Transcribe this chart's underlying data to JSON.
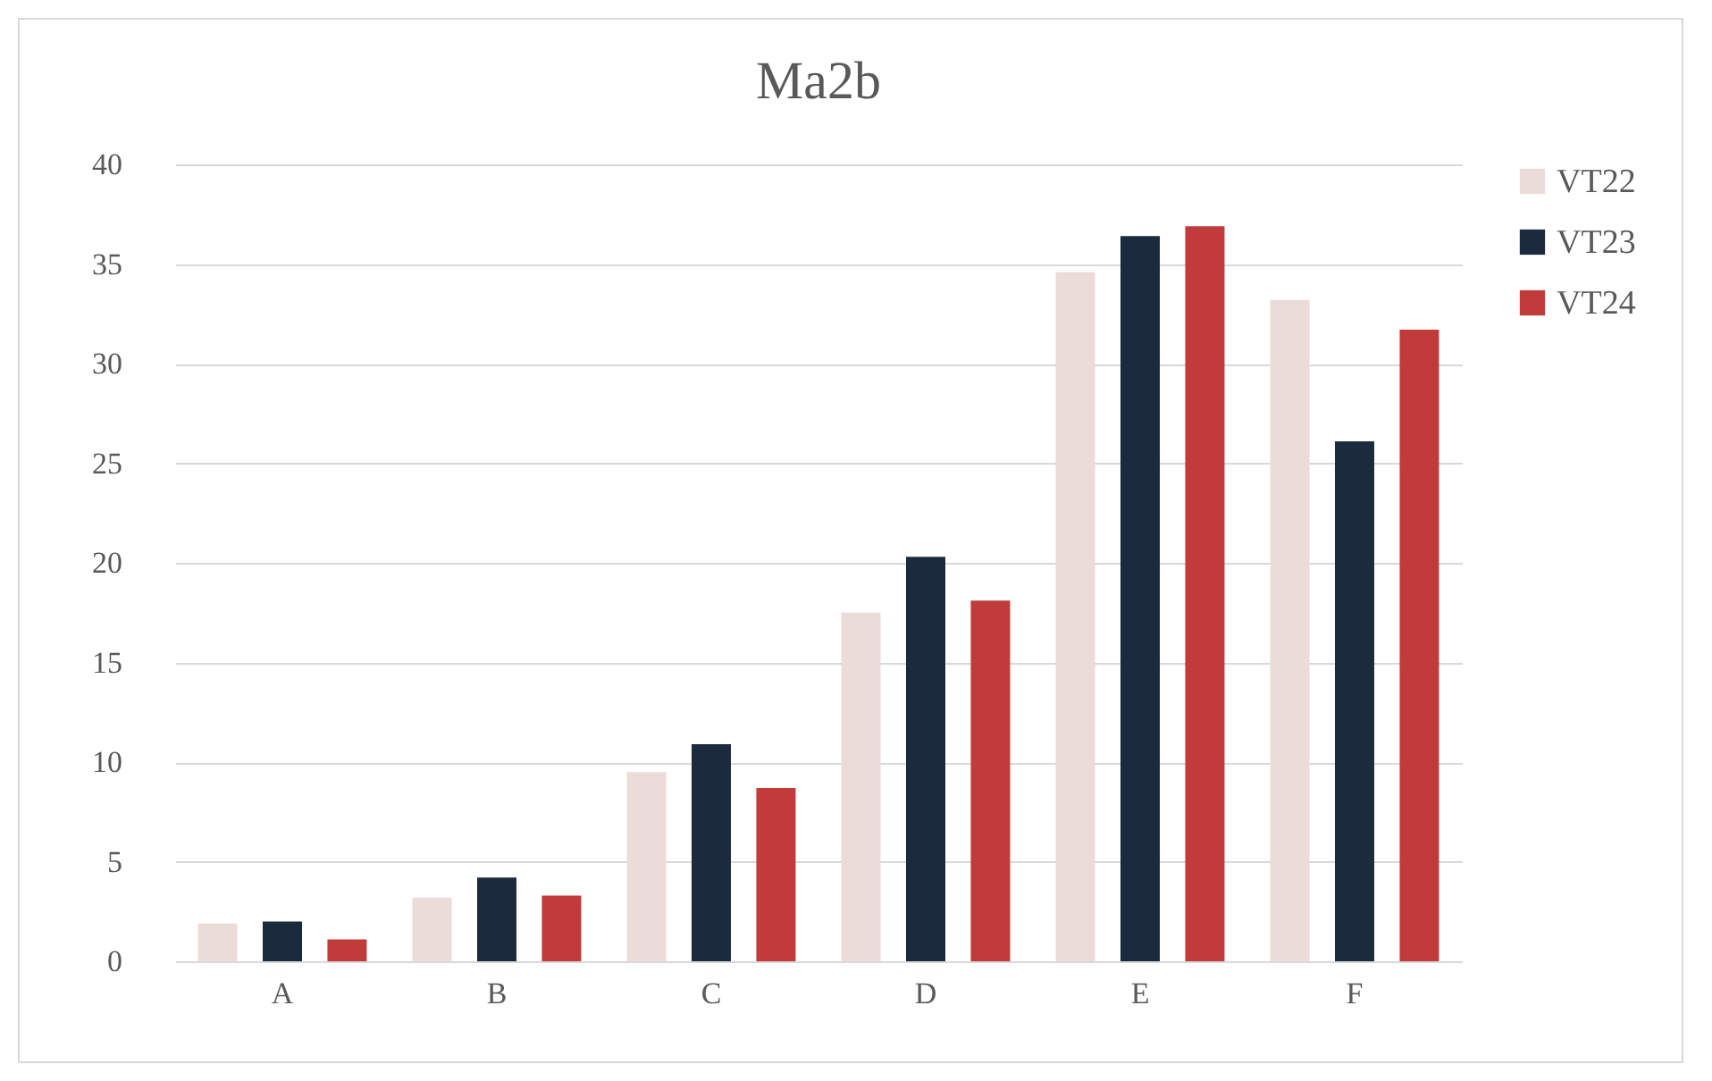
{
  "chart_data": {
    "type": "bar",
    "title": "Ma2b",
    "categories": [
      "A",
      "B",
      "C",
      "D",
      "E",
      "F"
    ],
    "series": [
      {
        "name": "VT22",
        "color": "#ecdcd9",
        "values": [
          1.9,
          3.2,
          9.5,
          17.5,
          34.6,
          33.2
        ]
      },
      {
        "name": "VT23",
        "color": "#1b2a3d",
        "values": [
          2.0,
          4.2,
          10.9,
          20.3,
          36.4,
          26.1
        ]
      },
      {
        "name": "VT24",
        "color": "#c13b3a",
        "values": [
          1.1,
          3.3,
          8.7,
          18.1,
          36.9,
          31.7
        ]
      }
    ],
    "ylim": [
      0,
      40
    ],
    "yticks": [
      0,
      5,
      10,
      15,
      20,
      25,
      30,
      35,
      40
    ],
    "grid": "y",
    "legend": "right"
  }
}
